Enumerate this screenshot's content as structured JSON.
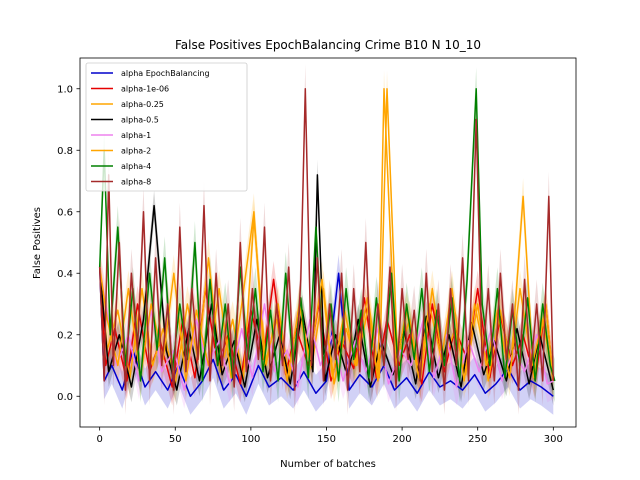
{
  "chart_data": {
    "type": "line",
    "title": "False Positives EpochBalancing Crime B10 N 10_10",
    "xlabel": "Number of batches",
    "ylabel": "False Positives",
    "xlim": [
      -13,
      315
    ],
    "ylim": [
      -0.1,
      1.1
    ],
    "xticks": [
      0,
      50,
      100,
      150,
      200,
      250,
      300
    ],
    "yticks": [
      0.0,
      0.2,
      0.4,
      0.6,
      0.8,
      1.0
    ],
    "grid": false,
    "legend_position": "upper-left",
    "series": [
      {
        "name": "alpha EpochBalancing",
        "color": "#0000cc",
        "band": 0.06,
        "x": [
          0,
          3,
          8,
          15,
          22,
          30,
          37,
          45,
          52,
          60,
          68,
          75,
          82,
          90,
          97,
          105,
          112,
          120,
          128,
          135,
          143,
          150,
          158,
          165,
          172,
          180,
          188,
          195,
          203,
          210,
          218,
          225,
          232,
          240,
          248,
          255,
          262,
          270,
          278,
          285,
          292,
          300
        ],
        "y": [
          0.42,
          0.05,
          0.1,
          0.02,
          0.15,
          0.03,
          0.08,
          0.02,
          0.1,
          0.0,
          0.05,
          0.12,
          0.02,
          0.07,
          0.0,
          0.1,
          0.03,
          0.06,
          0.02,
          0.08,
          0.01,
          0.05,
          0.4,
          0.02,
          0.07,
          0.03,
          0.1,
          0.02,
          0.06,
          0.01,
          0.08,
          0.03,
          0.05,
          0.02,
          0.07,
          0.01,
          0.04,
          0.09,
          0.02,
          0.05,
          0.03,
          0.0
        ]
      },
      {
        "name": "alpha-1e-06",
        "color": "#e60000",
        "band": 0.06,
        "x": [
          0,
          4,
          10,
          18,
          25,
          33,
          40,
          48,
          55,
          63,
          70,
          78,
          85,
          93,
          100,
          108,
          115,
          123,
          130,
          138,
          145,
          153,
          160,
          168,
          175,
          183,
          190,
          198,
          205,
          213,
          220,
          228,
          235,
          243,
          250,
          258,
          265,
          273,
          280,
          288,
          295,
          300
        ],
        "y": [
          0.42,
          0.1,
          0.22,
          0.05,
          0.3,
          0.08,
          0.18,
          0.03,
          0.25,
          0.06,
          0.35,
          0.1,
          0.2,
          0.04,
          0.28,
          0.12,
          0.38,
          0.07,
          0.22,
          0.1,
          0.3,
          0.05,
          0.18,
          0.09,
          0.32,
          0.06,
          0.25,
          0.1,
          0.2,
          0.04,
          0.3,
          0.08,
          0.22,
          0.12,
          0.35,
          0.06,
          0.26,
          0.1,
          0.2,
          0.05,
          0.3,
          0.05
        ]
      },
      {
        "name": "alpha-0.25",
        "color": "#ffa500",
        "band": 0.06,
        "x": [
          0,
          5,
          12,
          20,
          28,
          35,
          42,
          50,
          58,
          65,
          72,
          80,
          88,
          95,
          102,
          110,
          118,
          125,
          133,
          140,
          148,
          155,
          163,
          170,
          178,
          185,
          190,
          197,
          205,
          212,
          220,
          227,
          235,
          242,
          250,
          257,
          265,
          272,
          280,
          287,
          295,
          300
        ],
        "y": [
          0.42,
          0.15,
          0.28,
          0.06,
          0.35,
          0.1,
          0.22,
          0.04,
          0.3,
          0.12,
          0.45,
          0.08,
          0.25,
          0.05,
          0.58,
          0.1,
          0.3,
          0.06,
          0.25,
          0.09,
          0.35,
          0.04,
          0.22,
          0.1,
          0.3,
          0.06,
          1.0,
          0.12,
          0.25,
          0.05,
          0.35,
          0.1,
          0.22,
          0.07,
          0.3,
          0.05,
          0.28,
          0.1,
          0.65,
          0.06,
          0.3,
          0.05
        ]
      },
      {
        "name": "alpha-0.5",
        "color": "#000000",
        "band": 0.05,
        "x": [
          0,
          6,
          13,
          21,
          29,
          36,
          44,
          51,
          59,
          66,
          74,
          81,
          89,
          96,
          104,
          111,
          119,
          126,
          134,
          141,
          144,
          149,
          156,
          164,
          171,
          179,
          186,
          194,
          201,
          209,
          216,
          224,
          231,
          239,
          246,
          254,
          261,
          269,
          276,
          284,
          291,
          300
        ],
        "y": [
          0.42,
          0.08,
          0.2,
          0.03,
          0.25,
          0.62,
          0.15,
          0.02,
          0.22,
          0.05,
          0.3,
          0.07,
          0.18,
          0.03,
          0.25,
          0.06,
          0.2,
          0.04,
          0.28,
          0.08,
          0.72,
          0.05,
          0.2,
          0.06,
          0.25,
          0.03,
          0.18,
          0.07,
          0.22,
          0.04,
          0.26,
          0.06,
          0.2,
          0.03,
          0.24,
          0.07,
          0.18,
          0.05,
          0.22,
          0.04,
          0.2,
          0.02
        ]
      },
      {
        "name": "alpha-1",
        "color": "#ee82ee",
        "band": 0.06,
        "x": [
          0,
          4,
          11,
          19,
          26,
          34,
          41,
          49,
          56,
          64,
          71,
          79,
          86,
          94,
          101,
          109,
          116,
          124,
          131,
          139,
          146,
          154,
          161,
          169,
          176,
          184,
          191,
          199,
          206,
          214,
          221,
          229,
          236,
          244,
          251,
          259,
          266,
          274,
          281,
          289,
          296,
          300
        ],
        "y": [
          0.42,
          0.3,
          0.1,
          0.2,
          0.05,
          0.28,
          0.08,
          0.15,
          0.02,
          0.25,
          0.1,
          0.18,
          0.04,
          0.22,
          0.06,
          0.3,
          0.08,
          0.15,
          0.03,
          0.25,
          0.1,
          0.2,
          0.05,
          0.18,
          0.08,
          0.22,
          0.04,
          0.15,
          0.1,
          0.25,
          0.06,
          0.2,
          0.03,
          0.18,
          0.08,
          0.22,
          0.05,
          0.15,
          0.08,
          0.2,
          0.04,
          0.05
        ]
      },
      {
        "name": "alpha-2",
        "color": "#ffa500",
        "band": 0.06,
        "x": [
          0,
          5,
          12,
          19,
          27,
          34,
          42,
          49,
          57,
          64,
          72,
          79,
          87,
          94,
          102,
          109,
          117,
          124,
          132,
          139,
          147,
          154,
          162,
          169,
          177,
          184,
          188,
          196,
          203,
          211,
          218,
          226,
          233,
          241,
          248,
          256,
          263,
          271,
          278,
          286,
          293,
          300
        ],
        "y": [
          0.42,
          0.25,
          0.1,
          0.35,
          0.06,
          0.3,
          0.12,
          0.4,
          0.05,
          0.28,
          0.1,
          0.35,
          0.06,
          0.3,
          0.6,
          0.1,
          0.25,
          0.05,
          0.3,
          0.12,
          0.38,
          0.06,
          0.28,
          0.1,
          0.32,
          0.05,
          1.0,
          0.1,
          0.28,
          0.06,
          0.3,
          0.12,
          0.35,
          0.05,
          0.3,
          0.1,
          0.28,
          0.06,
          0.35,
          0.1,
          0.25,
          0.05
        ]
      },
      {
        "name": "alpha-4",
        "color": "#008000",
        "band": 0.07,
        "x": [
          0,
          3,
          7,
          12,
          17,
          22,
          27,
          33,
          38,
          43,
          48,
          53,
          58,
          63,
          68,
          73,
          78,
          83,
          88,
          93,
          98,
          103,
          108,
          113,
          118,
          123,
          128,
          133,
          138,
          143,
          148,
          153,
          158,
          163,
          168,
          173,
          178,
          183,
          188,
          193,
          198,
          203,
          208,
          213,
          218,
          223,
          228,
          233,
          238,
          243,
          249,
          253,
          258,
          263,
          268,
          273,
          278,
          283,
          288,
          293,
          298,
          301
        ],
        "y": [
          0.42,
          0.8,
          0.2,
          0.55,
          0.1,
          0.35,
          0.05,
          0.4,
          0.15,
          0.45,
          0.08,
          0.3,
          0.12,
          0.5,
          0.05,
          0.38,
          0.1,
          0.3,
          0.06,
          0.42,
          0.12,
          0.35,
          0.08,
          0.28,
          0.05,
          0.4,
          0.1,
          0.32,
          0.06,
          0.55,
          0.1,
          0.3,
          0.05,
          0.35,
          0.12,
          0.28,
          0.06,
          0.32,
          0.1,
          0.4,
          0.05,
          0.3,
          0.12,
          0.35,
          0.08,
          0.28,
          0.1,
          0.32,
          0.05,
          0.38,
          1.0,
          0.3,
          0.1,
          0.35,
          0.06,
          0.28,
          0.1,
          0.32,
          0.05,
          0.3,
          0.1,
          0.05
        ]
      },
      {
        "name": "alpha-8",
        "color": "#a52a2a",
        "band": 0.08,
        "x": [
          0,
          3,
          6,
          9,
          13,
          17,
          21,
          25,
          29,
          33,
          37,
          41,
          45,
          49,
          53,
          57,
          61,
          65,
          69,
          73,
          77,
          81,
          85,
          89,
          93,
          97,
          101,
          105,
          109,
          113,
          117,
          121,
          125,
          129,
          133,
          136,
          140,
          144,
          148,
          152,
          156,
          160,
          164,
          168,
          172,
          176,
          180,
          184,
          188,
          192,
          196,
          200,
          204,
          208,
          212,
          216,
          220,
          224,
          228,
          232,
          236,
          240,
          244,
          249,
          253,
          257,
          261,
          265,
          269,
          273,
          277,
          281,
          285,
          289,
          293,
          297,
          300
        ],
        "y": [
          0.42,
          0.05,
          0.72,
          0.1,
          0.5,
          0.02,
          0.4,
          0.15,
          0.6,
          0.05,
          0.45,
          0.1,
          0.3,
          0.02,
          0.55,
          0.08,
          0.35,
          0.12,
          0.62,
          0.05,
          0.4,
          0.1,
          0.3,
          0.03,
          0.5,
          0.08,
          0.35,
          0.12,
          0.55,
          0.05,
          0.3,
          0.1,
          0.42,
          0.02,
          0.38,
          1.0,
          0.1,
          0.45,
          0.05,
          0.3,
          0.12,
          0.4,
          0.02,
          0.35,
          0.08,
          0.5,
          0.05,
          0.3,
          0.1,
          0.42,
          0.03,
          0.35,
          0.12,
          0.28,
          0.05,
          0.4,
          0.08,
          0.3,
          0.02,
          0.35,
          0.1,
          0.45,
          0.05,
          0.9,
          0.1,
          0.35,
          0.05,
          0.4,
          0.12,
          0.3,
          0.02,
          0.38,
          0.08,
          0.3,
          0.05,
          0.65,
          0.05
        ]
      }
    ]
  }
}
